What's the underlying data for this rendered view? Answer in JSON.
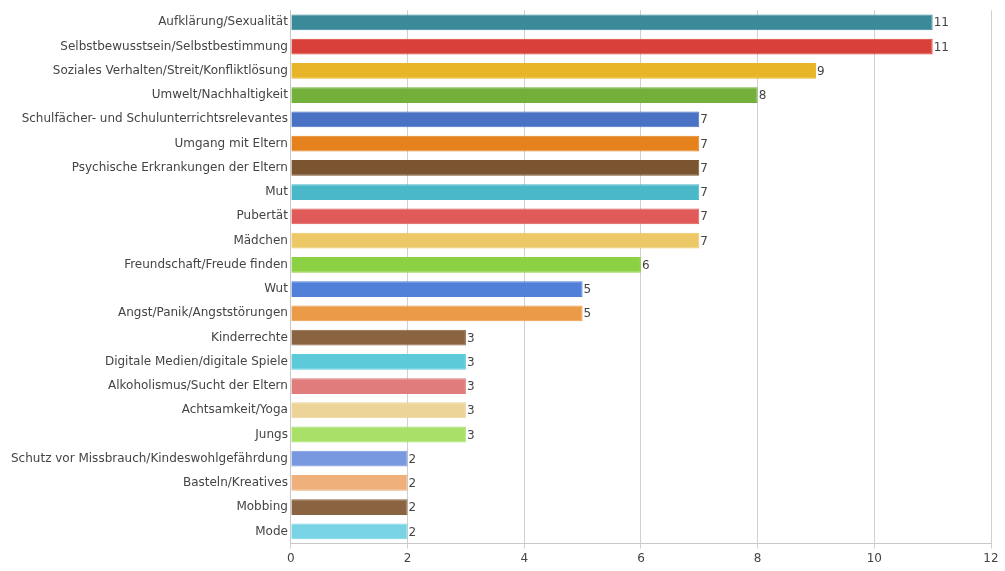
{
  "chart_data": {
    "type": "bar",
    "orientation": "horizontal",
    "categories": [
      "Aufklärung/Sexualität",
      "Selbstbewusstsein/Selbstbestimmung",
      "Soziales Verhalten/Streit/Konfliktlösung",
      "Umwelt/Nachhaltigkeit",
      "Schulfächer- und Schulunterrichtsrelevantes",
      "Umgang mit Eltern",
      "Psychische Erkrankungen der Eltern",
      "Mut",
      "Pubertät",
      "Mädchen",
      "Freundschaft/Freude finden",
      "Wut",
      "Angst/Panik/Angststörungen",
      "Kinderrechte",
      "Digitale Medien/digitale Spiele",
      "Alkoholismus/Sucht der Eltern",
      "Achtsamkeit/Yoga",
      "Jungs",
      "Schutz vor Missbrauch/Kindeswohlgefährdung",
      "Basteln/Kreatives",
      "Mobbing",
      "Mode"
    ],
    "values": [
      11,
      11,
      9,
      8,
      7,
      7,
      7,
      7,
      7,
      7,
      6,
      5,
      5,
      3,
      3,
      3,
      3,
      3,
      2,
      2,
      2,
      2
    ],
    "colors": [
      "#3a8a99",
      "#d9403a",
      "#e8b528",
      "#72b03a",
      "#4a72c4",
      "#e5821e",
      "#7a5530",
      "#4ab8c8",
      "#e05a5a",
      "#ecc866",
      "#8cd044",
      "#5080d8",
      "#eb9a48",
      "#8a6440",
      "#5ccad8",
      "#e07c7c",
      "#ecd498",
      "#a8e068",
      "#7898e0",
      "#f0b07c",
      "#8a6440",
      "#78d4e4"
    ],
    "xlim": [
      0,
      12
    ],
    "xticks": [
      0,
      2,
      4,
      6,
      8,
      10,
      12
    ],
    "grid": "x",
    "data_labels": true
  }
}
